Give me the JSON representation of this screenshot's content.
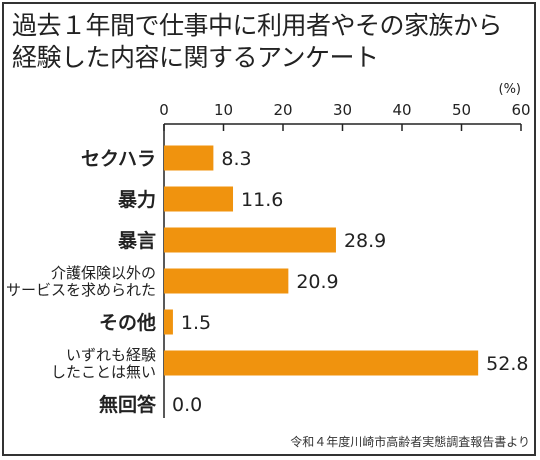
{
  "title_lines": [
    "過去１年間で仕事中に利用者やその家族から",
    "経験した内容に関するアンケート"
  ],
  "source": "令和４年度川崎市高齢者実態調査報告書より",
  "colors": {
    "bar": "#F0930E",
    "text": "#222222",
    "axis": "#222222"
  },
  "chart_data": {
    "type": "bar",
    "orientation": "horizontal",
    "unit_label": "(%)",
    "xlim": [
      0,
      60
    ],
    "ticks": [
      0,
      10,
      20,
      30,
      40,
      50,
      60
    ],
    "grid": false,
    "categories": [
      "セクハラ",
      "暴力",
      "暴言",
      "介護保険以外の\nサービスを求められた",
      "その他",
      "いずれも経験\nしたことは無い",
      "無回答"
    ],
    "values": [
      8.3,
      11.6,
      28.9,
      20.9,
      1.5,
      52.8,
      0.0
    ],
    "value_labels": [
      "8.3",
      "11.6",
      "28.9",
      "20.9",
      "1.5",
      "52.8",
      "0.0"
    ]
  }
}
